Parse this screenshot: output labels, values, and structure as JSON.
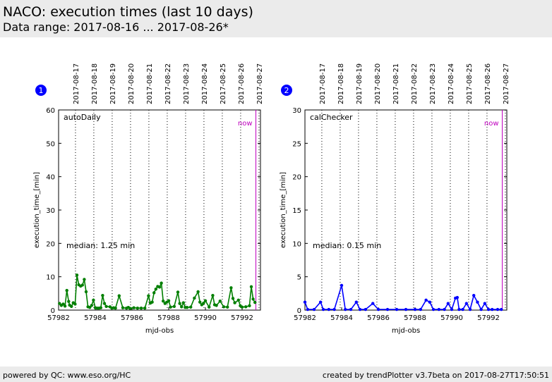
{
  "header": {
    "title": "NACO: execution times (last 10 days)",
    "subtitle": "Data range: 2017-08-16 ... 2017-08-26*"
  },
  "footer": {
    "left": "powered by QC: www.eso.org/HC",
    "right": "created by trendPlotter v3.7beta on 2017-08-27T17:50:51"
  },
  "chart_data": [
    {
      "type": "line",
      "panel_number": "1",
      "series_label": "autoDaily",
      "series": [
        {
          "x": [
            57982.05,
            57982.15,
            57982.25,
            57982.35,
            57982.45,
            57982.55,
            57982.6,
            57982.7,
            57982.8,
            57982.9,
            57983.0,
            57983.1,
            57983.2,
            57983.3,
            57983.4,
            57983.5,
            57983.6,
            57983.7,
            57983.8,
            57983.9,
            57984.0,
            57984.1,
            57984.2,
            57984.3,
            57984.4,
            57984.5,
            57984.6,
            57984.8,
            57984.9,
            57985.0,
            57985.1,
            57985.3,
            57985.5,
            57985.7,
            57985.8,
            57985.9,
            57986.1,
            57986.3,
            57986.5,
            57986.7,
            57986.9,
            57987.0,
            57987.1,
            57987.2,
            57987.3,
            57987.4,
            57987.5,
            57987.6,
            57987.7,
            57987.8,
            57987.9,
            57988.0,
            57988.1,
            57988.3,
            57988.5,
            57988.6,
            57988.7,
            57988.8,
            57988.9,
            57989.0,
            57989.2,
            57989.4,
            57989.6,
            57989.7,
            57989.8,
            57989.9,
            57990.0,
            57990.2,
            57990.4,
            57990.5,
            57990.6,
            57990.8,
            57991.0,
            57991.2,
            57991.4,
            57991.5,
            57991.6,
            57991.8,
            57991.9,
            57992.0,
            57992.2,
            57992.4,
            57992.5,
            57992.6,
            57992.7
          ],
          "y": [
            2.0,
            1.4,
            1.8,
            1.2,
            5.9,
            2.6,
            1.5,
            1.1,
            2.2,
            1.8,
            10.5,
            7.6,
            7.2,
            7.5,
            9.2,
            5.5,
            1.0,
            0.8,
            1.4,
            3.0,
            0.7,
            0.6,
            0.6,
            0.7,
            4.4,
            2.0,
            1.1,
            1.0,
            0.6,
            0.7,
            0.6,
            4.3,
            0.7,
            0.6,
            0.8,
            0.5,
            0.7,
            0.6,
            0.6,
            0.6,
            4.3,
            2.1,
            2.4,
            5.2,
            6.3,
            7.1,
            6.9,
            8.1,
            2.7,
            2.0,
            2.4,
            2.8,
            0.9,
            1.1,
            5.4,
            2.0,
            1.0,
            2.2,
            0.8,
            0.8,
            0.9,
            3.6,
            5.5,
            2.4,
            1.6,
            2.1,
            2.8,
            0.9,
            4.4,
            1.6,
            1.4,
            2.7,
            1.0,
            0.9,
            6.7,
            3.5,
            2.2,
            3.0,
            1.3,
            0.9,
            1.0,
            1.3,
            7.0,
            3.3,
            2.3
          ]
        }
      ],
      "x_ticks": [
        57982,
        57984,
        57986,
        57988,
        57990,
        57992
      ],
      "y_ticks": [
        0,
        10,
        20,
        30,
        40,
        50,
        60
      ],
      "xlim": [
        57982,
        57993
      ],
      "ylim": [
        0,
        60
      ],
      "xlabel": "mjd-obs",
      "ylabel": "execution_time_[min]",
      "median_label": "median: 1.25 min",
      "now_label": "now",
      "now_x": 57992.75,
      "day_lines": [
        57982.92,
        57983.92,
        57984.92,
        57985.92,
        57986.92,
        57987.92,
        57988.92,
        57989.92,
        57990.92,
        57991.92,
        57992.92
      ],
      "top_dates": [
        "2017-08-17",
        "2017-08-18",
        "2017-08-19",
        "2017-08-20",
        "2017-08-21",
        "2017-08-22",
        "2017-08-23",
        "2017-08-24",
        "2017-08-25",
        "2017-08-26",
        "2017-08-27"
      ],
      "line_color": "#007f00",
      "marker_color": "#007f00"
    },
    {
      "type": "line",
      "panel_number": "2",
      "series_label": "calChecker",
      "series": [
        {
          "x": [
            57982.0,
            57982.15,
            57982.5,
            57982.85,
            57983.0,
            57983.3,
            57983.6,
            57984.0,
            57984.2,
            57984.5,
            57984.8,
            57985.0,
            57985.3,
            57985.7,
            57986.0,
            57986.5,
            57987.0,
            57987.5,
            57988.0,
            57988.3,
            57988.6,
            57988.8,
            57989.0,
            57989.3,
            57989.6,
            57989.8,
            57990.0,
            57990.2,
            57990.3,
            57990.4,
            57990.6,
            57990.8,
            57991.0,
            57991.2,
            57991.4,
            57991.6,
            57991.8,
            57992.0,
            57992.2,
            57992.5,
            57992.7
          ],
          "y": [
            1.2,
            0.1,
            0.1,
            1.2,
            0.1,
            0.1,
            0.1,
            3.7,
            0.1,
            0.1,
            1.2,
            0.1,
            0.1,
            1.0,
            0.1,
            0.1,
            0.1,
            0.1,
            0.1,
            0.1,
            1.5,
            1.2,
            0.1,
            0.1,
            0.1,
            1.0,
            0.1,
            1.8,
            1.9,
            0.1,
            0.1,
            1.0,
            0.1,
            2.2,
            1.2,
            0.1,
            1.0,
            0.1,
            0.1,
            0.1,
            0.1
          ]
        }
      ],
      "x_ticks": [
        57982,
        57984,
        57986,
        57988,
        57990,
        57992
      ],
      "y_ticks": [
        0,
        5,
        10,
        15,
        20,
        25,
        30
      ],
      "xlim": [
        57982,
        57993
      ],
      "ylim": [
        0,
        30
      ],
      "xlabel": "mjd-obs",
      "ylabel": "execution_time_[min]",
      "median_label": "median: 0.15 min",
      "now_label": "now",
      "now_x": 57992.75,
      "day_lines": [
        57982.92,
        57983.92,
        57984.92,
        57985.92,
        57986.92,
        57987.92,
        57988.92,
        57989.92,
        57990.92,
        57991.92,
        57992.92
      ],
      "top_dates": [
        "2017-08-17",
        "2017-08-18",
        "2017-08-19",
        "2017-08-20",
        "2017-08-21",
        "2017-08-22",
        "2017-08-23",
        "2017-08-24",
        "2017-08-25",
        "2017-08-26",
        "2017-08-27"
      ],
      "line_color": "#0000ff",
      "marker_color": "#0000ff"
    }
  ],
  "colors": {
    "header_bg": "#ebebeb",
    "badge": "#0000ff",
    "now_line": "#bf00bf"
  }
}
